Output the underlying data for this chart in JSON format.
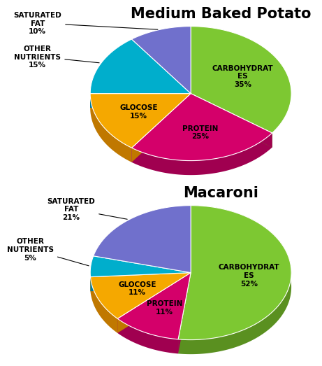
{
  "chart1": {
    "title": "Medium Baked Potato",
    "values": [
      35,
      25,
      15,
      15,
      10
    ],
    "colors": [
      "#7DC832",
      "#D4006A",
      "#F5A800",
      "#00AECC",
      "#7070CC"
    ],
    "dark_colors": [
      "#5A9020",
      "#A00050",
      "#C07800",
      "#007A99",
      "#4040AA"
    ],
    "labels_inside": [
      "CARBOHYDRAT\nES\n35%",
      "PROTEIN\n25%",
      "GLOCOSE\n15%",
      "",
      ""
    ],
    "labels_outside": [
      "",
      "",
      "",
      "OTHER\nNUTRIENTS\n15%",
      "SATURATED\nFAT\n10%"
    ]
  },
  "chart2": {
    "title": "Macaroni",
    "values": [
      52,
      11,
      11,
      5,
      21
    ],
    "colors": [
      "#7DC832",
      "#D4006A",
      "#F5A800",
      "#00AECC",
      "#7070CC"
    ],
    "dark_colors": [
      "#5A9020",
      "#A00050",
      "#C07800",
      "#007A99",
      "#4040AA"
    ],
    "labels_inside": [
      "CARBOHYDRAT\nES\n52%",
      "PROTEIN\n11%",
      "GLOCOSE\n11%",
      "",
      ""
    ],
    "labels_outside": [
      "",
      "",
      "",
      "OTHER\nNUTRIENTS\n5%",
      "SATURATED\nFAT\n21%"
    ]
  },
  "background_color": "#FFFFFF",
  "title_fontsize": 15,
  "label_fontsize": 7.5
}
